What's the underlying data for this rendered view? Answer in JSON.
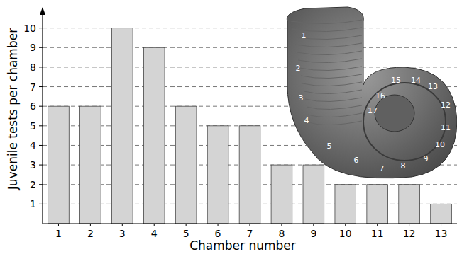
{
  "chart_data": {
    "type": "bar",
    "x_label": "Chamber number",
    "y_label": "Juvenile tests per chamber",
    "categories": [
      "1",
      "2",
      "3",
      "4",
      "5",
      "6",
      "7",
      "8",
      "9",
      "10",
      "11",
      "12",
      "13"
    ],
    "values": [
      6,
      6,
      10,
      9,
      6,
      5,
      5,
      3,
      3,
      2,
      2,
      2,
      1
    ],
    "color": "#d4d4d4",
    "ylim": [
      0,
      11
    ],
    "yticks": [
      1,
      2,
      3,
      4,
      5,
      6,
      7,
      8,
      9,
      10
    ],
    "grid": true,
    "annotations": [
      "1",
      "2",
      "3",
      "4",
      "5",
      "6",
      "7",
      "8",
      "9",
      "10",
      "11",
      "12",
      "13",
      "14",
      "15",
      "16",
      "17"
    ]
  }
}
